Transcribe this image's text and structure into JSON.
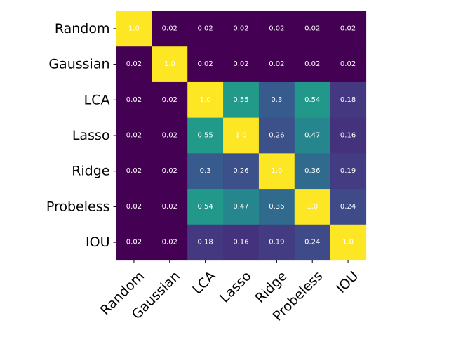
{
  "chart_data": {
    "type": "heatmap",
    "title": "",
    "xlabel": "",
    "ylabel": "",
    "colormap": "viridis",
    "vmin": 0.02,
    "vmax": 1.0,
    "row_labels": [
      "Random",
      "Gaussian",
      "LCA",
      "Lasso",
      "Ridge",
      "Probeless",
      "IOU"
    ],
    "col_labels": [
      "Random",
      "Gaussian",
      "LCA",
      "Lasso",
      "Ridge",
      "Probeless",
      "IOU"
    ],
    "values": [
      [
        1.0,
        0.02,
        0.02,
        0.02,
        0.02,
        0.02,
        0.02
      ],
      [
        0.02,
        1.0,
        0.02,
        0.02,
        0.02,
        0.02,
        0.02
      ],
      [
        0.02,
        0.02,
        1.0,
        0.55,
        0.3,
        0.54,
        0.18
      ],
      [
        0.02,
        0.02,
        0.55,
        1.0,
        0.26,
        0.47,
        0.16
      ],
      [
        0.02,
        0.02,
        0.3,
        0.26,
        1.0,
        0.36,
        0.19
      ],
      [
        0.02,
        0.02,
        0.54,
        0.47,
        0.36,
        1.0,
        0.24
      ],
      [
        0.02,
        0.02,
        0.18,
        0.16,
        0.19,
        0.24,
        1.0
      ]
    ],
    "display_values": [
      [
        "1.0",
        "0.02",
        "0.02",
        "0.02",
        "0.02",
        "0.02",
        "0.02"
      ],
      [
        "0.02",
        "1.0",
        "0.02",
        "0.02",
        "0.02",
        "0.02",
        "0.02"
      ],
      [
        "0.02",
        "0.02",
        "1.0",
        "0.55",
        "0.3",
        "0.54",
        "0.18"
      ],
      [
        "0.02",
        "0.02",
        "0.55",
        "1.0",
        "0.26",
        "0.47",
        "0.16"
      ],
      [
        "0.02",
        "0.02",
        "0.3",
        "0.26",
        "1.0",
        "0.36",
        "0.19"
      ],
      [
        "0.02",
        "0.02",
        "0.54",
        "0.47",
        "0.36",
        "1.0",
        "0.24"
      ],
      [
        "0.02",
        "0.02",
        "0.18",
        "0.16",
        "0.19",
        "0.24",
        "1.0"
      ]
    ],
    "annotation_color": "#ffffff",
    "grid": false,
    "legend": "none"
  }
}
